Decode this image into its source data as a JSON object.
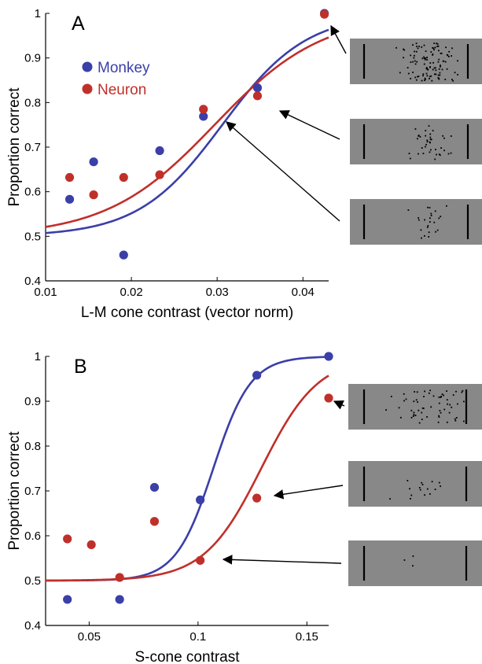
{
  "colors": {
    "monkey": "#3b3fa8",
    "neuron": "#c0302a",
    "stimulus_bg": "#888888"
  },
  "chart_data": [
    {
      "type": "scatter",
      "panel_label": "A",
      "xlabel": "L-M cone contrast (vector norm)",
      "ylabel": "Proportion correct",
      "xlim": [
        0.01,
        0.043
      ],
      "ylim": [
        0.4,
        1.0
      ],
      "xticks": [
        0.01,
        0.02,
        0.03,
        0.04
      ],
      "xtick_labels": [
        "0.01",
        "0.02",
        "0.03",
        "0.04"
      ],
      "yticks": [
        0.4,
        0.5,
        0.6,
        0.7,
        0.8,
        0.9,
        1.0
      ],
      "ytick_labels": [
        "0.4",
        "0.5",
        "0.6",
        "0.7",
        "0.8",
        "0.9",
        "1"
      ],
      "legend": {
        "placement": "top-left",
        "entries": [
          "Monkey",
          "Neuron"
        ]
      },
      "series": [
        {
          "name": "Monkey",
          "color": "#3b3fa8",
          "x": [
            0.0128,
            0.0156,
            0.0191,
            0.0233,
            0.0284,
            0.0347,
            0.0425
          ],
          "y": [
            0.583,
            0.667,
            0.458,
            0.692,
            0.769,
            0.833,
            1.0
          ],
          "fit": {
            "x0": 0.0306,
            "s": 0.0049
          }
        },
        {
          "name": "Neuron",
          "color": "#c0302a",
          "x": [
            0.0128,
            0.0156,
            0.0191,
            0.0233,
            0.0284,
            0.0347,
            0.0425
          ],
          "y": [
            0.632,
            0.593,
            0.632,
            0.638,
            0.785,
            0.815,
            0.998
          ],
          "fit": {
            "x0": 0.0297,
            "s": 0.0063
          }
        }
      ]
    },
    {
      "type": "scatter",
      "panel_label": "B",
      "xlabel": "S-cone contrast",
      "ylabel": "Proportion correct",
      "xlim": [
        0.03,
        0.16
      ],
      "ylim": [
        0.4,
        1.0
      ],
      "xticks": [
        0.05,
        0.1,
        0.15
      ],
      "xtick_labels": [
        "0.05",
        "0.1",
        "0.15"
      ],
      "yticks": [
        0.4,
        0.5,
        0.6,
        0.7,
        0.8,
        0.9,
        1.0
      ],
      "ytick_labels": [
        "0.4",
        "0.5",
        "0.6",
        "0.7",
        "0.8",
        "0.9",
        "1"
      ],
      "series": [
        {
          "name": "Monkey",
          "color": "#3b3fa8",
          "x": [
            0.04,
            0.064,
            0.08,
            0.101,
            0.127,
            0.16
          ],
          "y": [
            0.458,
            0.458,
            0.708,
            0.68,
            0.958,
            1.0
          ],
          "fit": {
            "x0": 0.107,
            "s": 0.0086
          }
        },
        {
          "name": "Neuron",
          "color": "#c0302a",
          "x": [
            0.04,
            0.051,
            0.064,
            0.08,
            0.101,
            0.127,
            0.16
          ],
          "y": [
            0.593,
            0.58,
            0.507,
            0.632,
            0.545,
            0.684,
            0.907
          ],
          "fit": {
            "x0": 0.129,
            "s": 0.0131
          }
        }
      ]
    }
  ]
}
